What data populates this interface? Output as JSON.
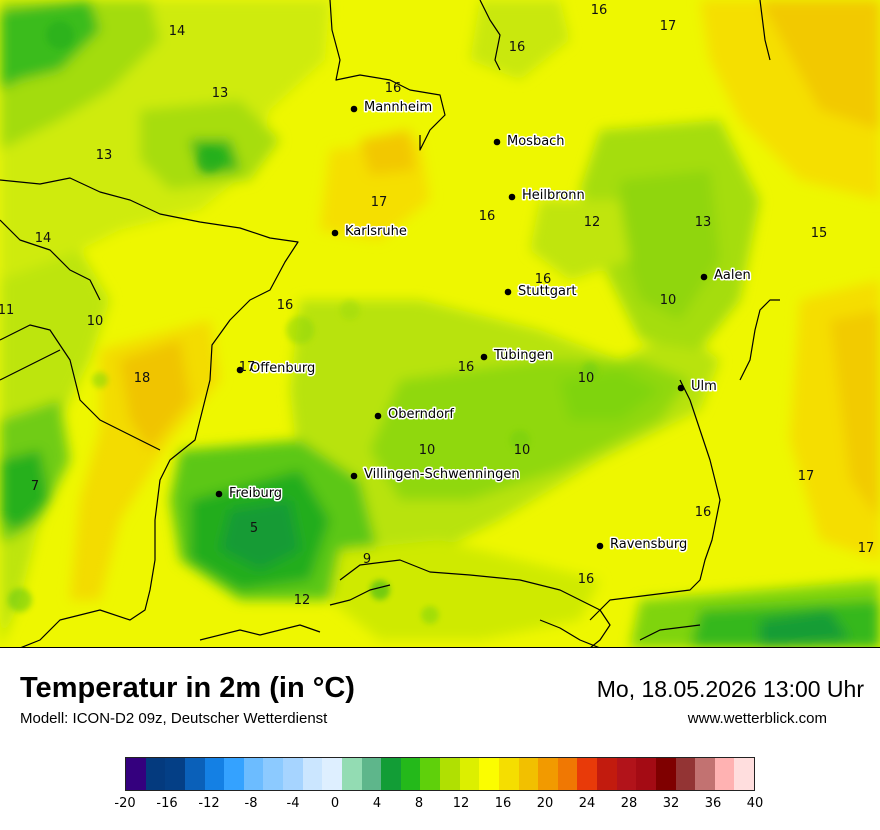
{
  "map": {
    "background_color": "#eef700",
    "cities": [
      {
        "name": "Mannheim"
      },
      {
        "name": "Mosbach"
      },
      {
        "name": "Heilbronn"
      },
      {
        "name": "Karlsruhe"
      },
      {
        "name": "Aalen"
      },
      {
        "name": "Stuttgart"
      },
      {
        "name": "Tübingen"
      },
      {
        "name": "Offenburg"
      },
      {
        "name": "Ulm"
      },
      {
        "name": "Oberndorf"
      },
      {
        "name": "Villingen-Schwenningen"
      },
      {
        "name": "Freiburg"
      },
      {
        "name": "Ravensburg"
      }
    ],
    "temperature_labels": [
      "16",
      "17",
      "14",
      "16",
      "16",
      "13",
      "13",
      "17",
      "16",
      "12",
      "13",
      "15",
      "14",
      "16",
      "11",
      "10",
      "10",
      "16",
      "17",
      "18",
      "16",
      "10",
      "10",
      "10",
      "7",
      "5",
      "9",
      "17",
      "16",
      "17",
      "12",
      "16"
    ]
  },
  "footer": {
    "title": "Temperatur in 2m (in °C)",
    "subtitle": "Modell: ICON-D2 09z, Deutscher Wetterdienst",
    "datetime": "Mo, 18.05.2026 13:00 Uhr",
    "website": "www.wetterblick.com"
  },
  "legend": {
    "colors": [
      "#34007e",
      "#043a7e",
      "#043f86",
      "#0a60b9",
      "#1480e4",
      "#34a2ff",
      "#6cbcff",
      "#8ccaff",
      "#a6d4ff",
      "#cbe6ff",
      "#deefff",
      "#93dcb3",
      "#5eb68b",
      "#129d36",
      "#24b91a",
      "#5fd00b",
      "#b0e002",
      "#dcef00",
      "#fbfd00",
      "#f5de00",
      "#f2c000",
      "#f29a00",
      "#f07803",
      "#e83a09",
      "#c21b0e",
      "#b2131a",
      "#a40b14",
      "#7f0000",
      "#933434",
      "#c27271",
      "#ffb2b2",
      "#ffdede"
    ],
    "ticks": [
      "-20",
      "-16",
      "-12",
      "-8",
      "-4",
      "0",
      "4",
      "8",
      "12",
      "16",
      "20",
      "24",
      "28",
      "32",
      "36",
      "40"
    ]
  }
}
